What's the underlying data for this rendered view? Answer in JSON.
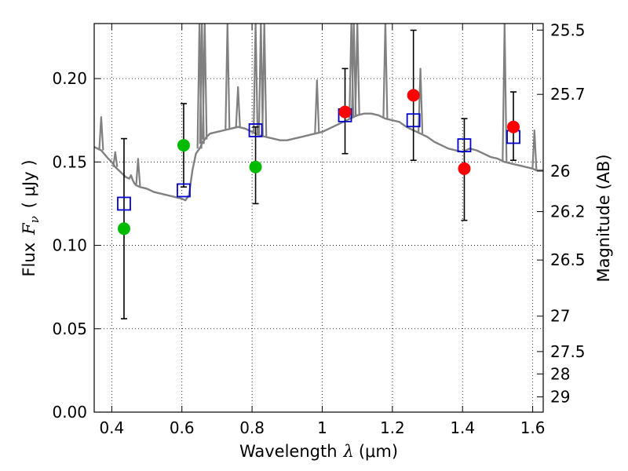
{
  "chart_data": {
    "type": "scatter",
    "xlabel_text": "Wavelength",
    "xlabel_symbol": "λ",
    "xlabel_unit": "(μm)",
    "ylabel_text": "Flux",
    "ylabel_symbol": "F",
    "ylabel_sub": "ν",
    "ylabel_unit": "( μJy )",
    "y2label": "Magnitude (AB)",
    "xlim": [
      0.35,
      1.63
    ],
    "ylim": [
      0.0,
      0.233
    ],
    "grid": true,
    "x_ticks": [
      0.4,
      0.6,
      0.8,
      1.0,
      1.2,
      1.4,
      1.6
    ],
    "x_tick_labels": [
      "0.4",
      "0.6",
      "0.8",
      "1",
      "1.2",
      "1.4",
      "1.6"
    ],
    "y_ticks": [
      0.0,
      0.05,
      0.1,
      0.15,
      0.2
    ],
    "y_tick_labels": [
      "0.00",
      "0.05",
      "0.10",
      "0.15",
      "0.20"
    ],
    "mag_ticks": [
      {
        "mag": 25.5,
        "label": "25.5"
      },
      {
        "mag": 25.7,
        "label": "25.7"
      },
      {
        "mag": 26.0,
        "label": "26"
      },
      {
        "mag": 26.2,
        "label": "26.2"
      },
      {
        "mag": 26.5,
        "label": "26.5"
      },
      {
        "mag": 27.0,
        "label": "27"
      },
      {
        "mag": 27.5,
        "label": "27.5"
      },
      {
        "mag": 28.0,
        "label": "28"
      },
      {
        "mag": 29.0,
        "label": "29"
      }
    ],
    "series": [
      {
        "name": "model spectrum",
        "style": "line",
        "color": "#808080",
        "x": [
          0.35,
          0.37,
          0.39,
          0.4,
          0.41,
          0.42,
          0.43,
          0.44,
          0.45,
          0.455,
          0.46,
          0.465,
          0.47,
          0.48,
          0.5,
          0.52,
          0.54,
          0.56,
          0.58,
          0.6,
          0.61,
          0.62,
          0.63,
          0.64,
          0.65,
          0.66,
          0.67,
          0.68,
          0.7,
          0.72,
          0.74,
          0.76,
          0.78,
          0.8,
          0.82,
          0.84,
          0.86,
          0.88,
          0.9,
          0.92,
          0.94,
          0.96,
          0.98,
          1.0,
          1.02,
          1.04,
          1.06,
          1.08,
          1.1,
          1.12,
          1.14,
          1.16,
          1.18,
          1.2,
          1.22,
          1.24,
          1.26,
          1.28,
          1.3,
          1.32,
          1.34,
          1.36,
          1.38,
          1.4,
          1.42,
          1.44,
          1.46,
          1.48,
          1.5,
          1.52,
          1.54,
          1.56,
          1.58,
          1.6,
          1.61,
          1.63
        ],
        "y": [
          0.159,
          0.157,
          0.152,
          0.15,
          0.147,
          0.145,
          0.143,
          0.141,
          0.14,
          0.142,
          0.139,
          0.137,
          0.136,
          0.135,
          0.134,
          0.132,
          0.131,
          0.13,
          0.129,
          0.128,
          0.127,
          0.13,
          0.145,
          0.155,
          0.158,
          0.162,
          0.165,
          0.167,
          0.168,
          0.169,
          0.17,
          0.171,
          0.17,
          0.168,
          0.166,
          0.165,
          0.164,
          0.163,
          0.163,
          0.164,
          0.165,
          0.166,
          0.167,
          0.168,
          0.17,
          0.172,
          0.174,
          0.176,
          0.178,
          0.179,
          0.179,
          0.178,
          0.176,
          0.175,
          0.174,
          0.171,
          0.169,
          0.167,
          0.165,
          0.162,
          0.16,
          0.158,
          0.157,
          0.156,
          0.158,
          0.157,
          0.155,
          0.153,
          0.152,
          0.15,
          0.149,
          0.148,
          0.147,
          0.146,
          0.145,
          0.145
        ]
      },
      {
        "name": "model spectrum emission lines",
        "style": "spikes",
        "color": "#808080",
        "x": [
          0.37,
          0.41,
          0.475,
          0.65,
          0.657,
          0.665,
          0.73,
          0.76,
          0.81,
          0.825,
          0.835,
          0.985,
          1.083,
          1.09,
          1.1,
          1.18,
          1.28,
          1.52,
          1.605
        ],
        "y": [
          0.176,
          0.155,
          0.151,
          0.233,
          0.233,
          0.233,
          0.233,
          0.194,
          0.233,
          0.233,
          0.233,
          0.198,
          0.233,
          0.233,
          0.233,
          0.233,
          0.205,
          0.233,
          0.168
        ]
      },
      {
        "name": "model photometry",
        "style": "open-square",
        "color": "#0000cc",
        "x": [
          0.435,
          0.605,
          0.81,
          1.065,
          1.26,
          1.405,
          1.545
        ],
        "y": [
          0.125,
          0.133,
          0.169,
          0.178,
          0.175,
          0.16,
          0.165
        ]
      },
      {
        "name": "photometry (green)",
        "style": "filled-circle",
        "color": "#00bb00",
        "x": [
          0.435,
          0.605,
          0.81
        ],
        "y": [
          0.11,
          0.16,
          0.147
        ],
        "yerr_low": [
          0.056,
          0.135,
          0.125
        ],
        "yerr_high": [
          0.164,
          0.185,
          0.171
        ]
      },
      {
        "name": "photometry (red)",
        "style": "filled-circle",
        "color": "#ff0000",
        "x": [
          1.065,
          1.26,
          1.405,
          1.545
        ],
        "y": [
          0.18,
          0.19,
          0.146,
          0.171
        ],
        "yerr_low": [
          0.155,
          0.151,
          0.115,
          0.151
        ],
        "yerr_high": [
          0.206,
          0.229,
          0.176,
          0.192
        ]
      }
    ]
  }
}
